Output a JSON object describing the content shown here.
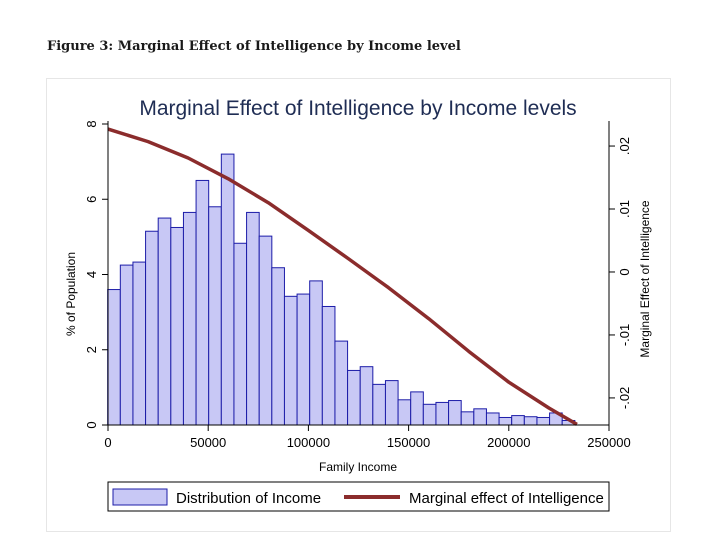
{
  "figure": {
    "caption": "Figure 3: Marginal Effect of Intelligence by Income level"
  },
  "chart_data": {
    "type": "bar",
    "title": "Marginal Effect of Intelligence by Income levels",
    "xlabel": "Family Income",
    "ylabel": "% of Population",
    "y2label": "Marginal Effect of Intelligence",
    "xlim": [
      0,
      250000
    ],
    "ylim": [
      0,
      8
    ],
    "y2lim": [
      -0.0243,
      0.0235
    ],
    "xticks": [
      "0",
      "50000",
      "100000",
      "150000",
      "200000",
      "250000"
    ],
    "xtick_values": [
      0,
      50000,
      100000,
      150000,
      200000,
      250000
    ],
    "yticks": [
      "0",
      "2",
      "4",
      "6",
      "8"
    ],
    "ytick_values": [
      0,
      2,
      4,
      6,
      8
    ],
    "y2ticks": [
      "-.02",
      "-.01",
      "0",
      ".01",
      ".02"
    ],
    "y2tick_values": [
      -0.02,
      -0.01,
      0,
      0.01,
      0.02
    ],
    "bar_width": 6300,
    "bar_x": [
      3000,
      9300,
      15600,
      21900,
      28200,
      34500,
      40800,
      47100,
      53400,
      59700,
      66000,
      72300,
      78600,
      84900,
      91200,
      97500,
      103800,
      110100,
      116400,
      122700,
      129000,
      135300,
      141600,
      147900,
      154200,
      160500,
      166800,
      173100,
      179400,
      185700,
      192000,
      198300,
      204600,
      210900,
      217200,
      223500,
      229800
    ],
    "series": [
      {
        "name": "Distribution of Income",
        "type": "bar",
        "color": "#c8c8f5",
        "edge_color": "#1c1ca8",
        "values": [
          3.6,
          4.25,
          4.33,
          5.15,
          5.5,
          5.25,
          5.65,
          6.5,
          5.8,
          7.2,
          4.83,
          5.65,
          5.02,
          4.18,
          3.42,
          3.48,
          3.83,
          3.15,
          2.23,
          1.45,
          1.55,
          1.08,
          1.18,
          0.67,
          0.88,
          0.55,
          0.6,
          0.65,
          0.35,
          0.43,
          0.32,
          0.2,
          0.25,
          0.22,
          0.2,
          0.32,
          0.12
        ]
      },
      {
        "name": "Marginal effect of Intelligence",
        "type": "line",
        "color": "#8b2c2c",
        "x": [
          0,
          20000,
          40000,
          60000,
          80000,
          100000,
          120000,
          140000,
          160000,
          180000,
          200000,
          220000,
          234000
        ],
        "values": [
          0.0227,
          0.0207,
          0.0181,
          0.0148,
          0.011,
          0.0066,
          0.0021,
          -0.0025,
          -0.0074,
          -0.0126,
          -0.0175,
          -0.0216,
          -0.0242
        ]
      }
    ],
    "legend": [
      "Distribution of Income",
      "Marginal effect of Intelligence"
    ],
    "legend_position": "bottom",
    "grid": false
  }
}
